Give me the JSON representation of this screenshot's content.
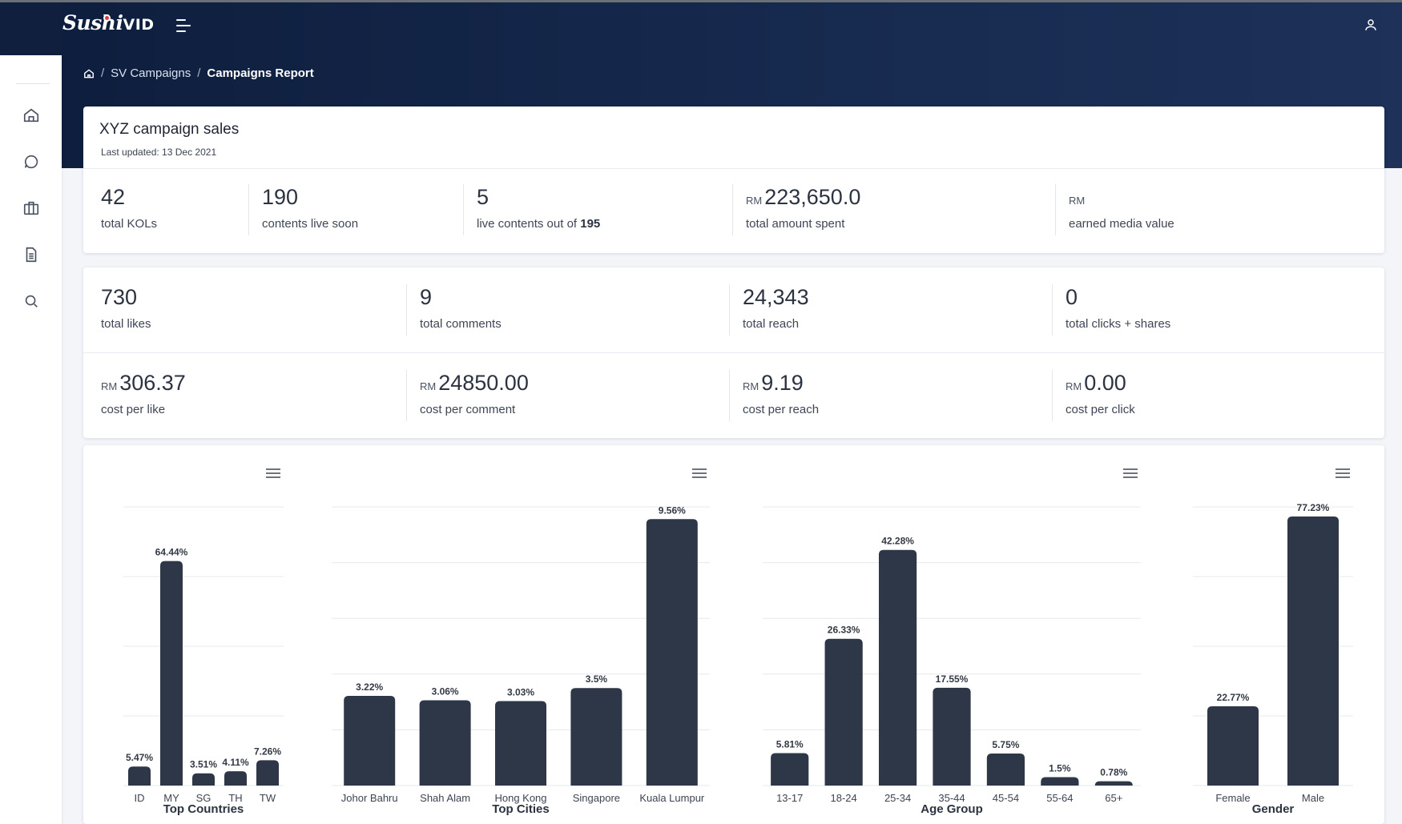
{
  "app": {
    "logo_text": "Sushi",
    "logo_suffix": "VID"
  },
  "breadcrumb": {
    "second": "SV Campaigns",
    "current": "Campaigns Report"
  },
  "campaign": {
    "title": "XYZ campaign sales",
    "last_updated": "Last updated: 13 Dec 2021"
  },
  "summary": [
    {
      "value": "42",
      "label": "total KOLs"
    },
    {
      "value": "190",
      "label": "contents live soon"
    },
    {
      "value": "5",
      "label_prefix": "live contents out of",
      "label_bold": "195"
    },
    {
      "currency": "RM",
      "value": "223,650.0",
      "label": "total amount spent"
    },
    {
      "currency": "RM",
      "value": "",
      "label": "earned media value"
    }
  ],
  "engagement": [
    {
      "value": "730",
      "label": "total likes"
    },
    {
      "value": "9",
      "label": "total comments"
    },
    {
      "value": "24,343",
      "label": "total reach"
    },
    {
      "value": "0",
      "label": "total clicks + shares"
    }
  ],
  "costs": [
    {
      "currency": "RM",
      "value": "306.37",
      "label": "cost per like"
    },
    {
      "currency": "RM",
      "value": "24850.00",
      "label": "cost per comment"
    },
    {
      "currency": "RM",
      "value": "9.19",
      "label": "cost per reach"
    },
    {
      "currency": "RM",
      "value": "0.00",
      "label": "cost per click"
    }
  ],
  "chart_colors": {
    "bar": "#2d3748",
    "grid": "#e6e8ec",
    "text": "#333a45"
  },
  "chart_data": [
    {
      "type": "bar",
      "title": "Top Countries",
      "categories": [
        "ID",
        "MY",
        "SG",
        "TH",
        "TW"
      ],
      "values": [
        5.47,
        64.44,
        3.51,
        4.11,
        7.26
      ],
      "labels": [
        "5.47%",
        "64.44%",
        "3.51%",
        "4.11%",
        "7.26%"
      ],
      "ylim": [
        0,
        80
      ]
    },
    {
      "type": "bar",
      "title": "Top Cities",
      "categories": [
        "Johor Bahru",
        "Shah Alam",
        "Hong Kong",
        "Singapore",
        "Kuala Lumpur"
      ],
      "values": [
        3.22,
        3.06,
        3.03,
        3.5,
        9.56
      ],
      "labels": [
        "3.22%",
        "3.06%",
        "3.03%",
        "3.5%",
        "9.56%"
      ],
      "ylim": [
        0,
        10
      ]
    },
    {
      "type": "bar",
      "title": "Age Group",
      "categories": [
        "13-17",
        "18-24",
        "25-34",
        "35-44",
        "45-54",
        "55-64",
        "65+"
      ],
      "values": [
        5.81,
        26.33,
        42.28,
        17.55,
        5.75,
        1.5,
        0.78
      ],
      "labels": [
        "5.81%",
        "26.33%",
        "42.28%",
        "17.55%",
        "5.75%",
        "1.5%",
        "0.78%"
      ],
      "ylim": [
        0,
        50
      ]
    },
    {
      "type": "bar",
      "title": "Gender",
      "categories": [
        "Female",
        "Male"
      ],
      "values": [
        22.77,
        77.23
      ],
      "labels": [
        "22.77%",
        "77.23%"
      ],
      "ylim": [
        0,
        80
      ]
    }
  ]
}
